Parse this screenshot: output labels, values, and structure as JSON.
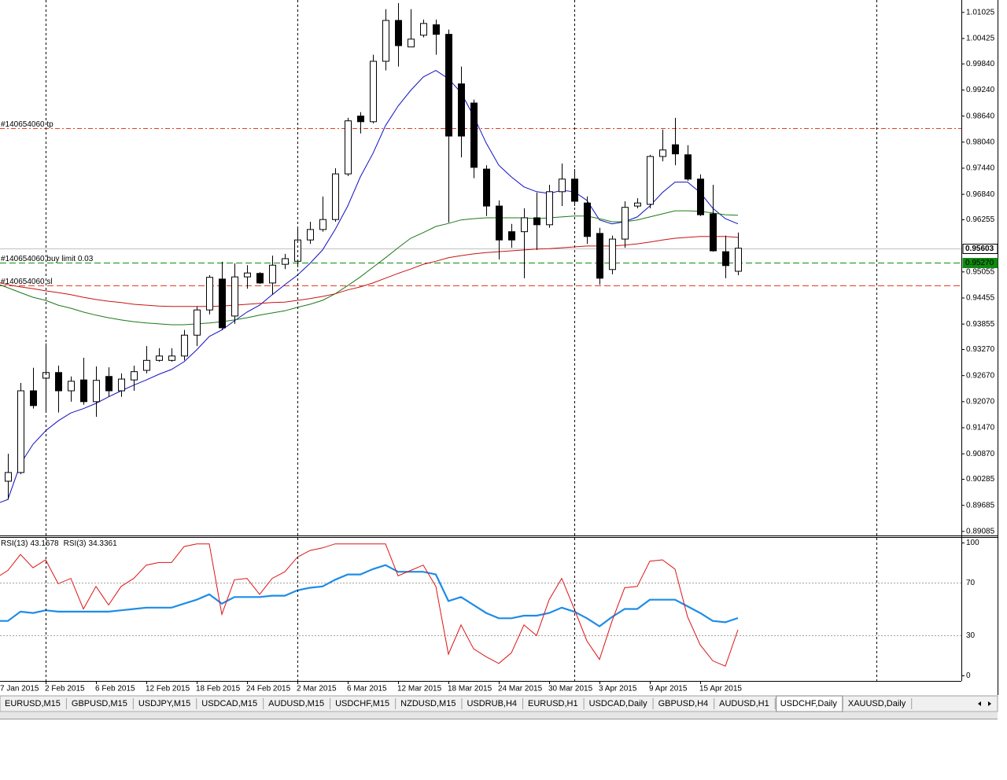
{
  "chart_data": [
    {
      "type": "candlestick",
      "categories": [
        "7 Jan 2015",
        null,
        null,
        null,
        "2 Feb 2015",
        null,
        null,
        null,
        "6 Feb 2015",
        null,
        null,
        null,
        "12 Feb 2015",
        null,
        null,
        null,
        "18 Feb 2015",
        null,
        null,
        null,
        "24 Feb 2015",
        null,
        null,
        null,
        "2 Mar 2015",
        null,
        null,
        null,
        "6 Mar 2015",
        null,
        null,
        null,
        "12 Mar 2015",
        null,
        null,
        null,
        "18 Mar 2015",
        null,
        null,
        null,
        "24 Mar 2015",
        null,
        null,
        null,
        "30 Mar 2015",
        null,
        null,
        null,
        "3 Apr 2015",
        null,
        null,
        null,
        "9 Apr 2015",
        null,
        null,
        null,
        "15 Apr 2015",
        null,
        null,
        null
      ],
      "open": [
        null,
        0.9024,
        0.9044,
        0.9232,
        0.9261,
        0.9274,
        0.9232,
        0.9257,
        0.9207,
        0.9265,
        0.9232,
        0.9257,
        0.9279,
        0.9302,
        0.9302,
        0.9312,
        0.936,
        0.9418,
        0.9489,
        0.9404,
        0.9494,
        0.9502,
        0.948,
        0.9523,
        0.953,
        0.9579,
        0.9603,
        0.9626,
        0.9731,
        0.9864,
        0.9851,
        0.999,
        1.0084,
        1.0023,
        1.005,
        1.0074,
        1.0052,
        0.9938,
        0.9894,
        0.9742,
        0.9657,
        0.9598,
        0.9598,
        0.963,
        0.9614,
        0.969,
        0.9719,
        0.9664,
        0.9594,
        0.9511,
        0.9581,
        0.9657,
        0.9661,
        0.9771,
        0.9798,
        0.9775,
        0.9719,
        0.9639,
        0.9552,
        0.9507
      ],
      "high": [
        null,
        0.9087,
        0.925,
        0.9285,
        0.9341,
        0.929,
        0.9265,
        0.9308,
        0.9288,
        0.9286,
        0.9272,
        0.929,
        0.9335,
        0.933,
        0.933,
        0.9372,
        0.9426,
        0.9498,
        0.9529,
        0.9525,
        0.9521,
        0.9505,
        0.9543,
        0.9547,
        0.9607,
        0.9621,
        0.9679,
        0.9744,
        0.986,
        0.9873,
        1.0005,
        1.011,
        1.0124,
        1.011,
        1.0086,
        1.0086,
        1.0063,
        0.9978,
        0.9902,
        0.9751,
        0.967,
        0.9616,
        0.9652,
        0.9688,
        0.9706,
        0.9755,
        0.9742,
        0.9679,
        0.9607,
        0.9589,
        0.9668,
        0.9675,
        0.9775,
        0.9833,
        0.986,
        0.9797,
        0.973,
        0.9706,
        0.9589,
        0.9596
      ],
      "low": [
        null,
        0.8982,
        0.904,
        0.9191,
        0.9185,
        0.9182,
        0.9207,
        0.92,
        0.9172,
        0.9218,
        0.9218,
        0.9232,
        0.9272,
        0.9299,
        0.9299,
        0.9302,
        0.9335,
        0.9408,
        0.9372,
        0.9386,
        0.9467,
        0.9478,
        0.9453,
        0.9512,
        0.9516,
        0.957,
        0.9598,
        0.9621,
        0.9726,
        0.9824,
        0.9847,
        0.9969,
        0.9978,
        1.0023,
        1.0045,
        1.0005,
        0.9619,
        0.9769,
        0.9721,
        0.9634,
        0.9534,
        0.9561,
        0.9491,
        0.9556,
        0.9607,
        0.9657,
        0.9657,
        0.957,
        0.9476,
        0.95,
        0.9561,
        0.9652,
        0.9652,
        0.976,
        0.9751,
        0.9715,
        0.9634,
        0.9552,
        0.9491,
        0.9498
      ],
      "close": [
        null,
        0.9044,
        0.9232,
        0.9198,
        0.9274,
        0.9232,
        0.9254,
        0.9207,
        0.9256,
        0.9232,
        0.9259,
        0.9276,
        0.9302,
        0.9312,
        0.9312,
        0.936,
        0.9418,
        0.9493,
        0.9377,
        0.9494,
        0.9503,
        0.948,
        0.9521,
        0.9536,
        0.9579,
        0.9603,
        0.9626,
        0.9731,
        0.9853,
        0.9851,
        0.999,
        1.0084,
        1.0026,
        1.0041,
        1.0077,
        1.0052,
        0.9818,
        0.9818,
        0.9746,
        0.9657,
        0.9579,
        0.9579,
        0.963,
        0.9614,
        0.969,
        0.9719,
        0.9668,
        0.9587,
        0.9491,
        0.9581,
        0.9654,
        0.9664,
        0.9771,
        0.9786,
        0.9777,
        0.9719,
        0.9637,
        0.9554,
        0.952,
        0.956
      ],
      "up_color": "#ffffff",
      "down_color": "#000000",
      "series": [
        {
          "color": "#1010c0",
          "values": [
            0.8971,
            0.8982,
            0.9064,
            0.9109,
            0.914,
            0.9163,
            0.9181,
            0.9191,
            0.9203,
            0.9218,
            0.9232,
            0.9245,
            0.9257,
            0.927,
            0.9281,
            0.9299,
            0.9326,
            0.9357,
            0.9372,
            0.9393,
            0.9413,
            0.9429,
            0.9453,
            0.9476,
            0.9498,
            0.9525,
            0.9556,
            0.9603,
            0.9657,
            0.9724,
            0.9778,
            0.9842,
            0.9887,
            0.9923,
            0.9954,
            0.9969,
            0.995,
            0.9918,
            0.9864,
            0.9802,
            0.9751,
            0.9724,
            0.9701,
            0.969,
            0.9686,
            0.9693,
            0.969,
            0.967,
            0.9625,
            0.9616,
            0.9621,
            0.9632,
            0.9657,
            0.9688,
            0.9712,
            0.9712,
            0.9688,
            0.9652,
            0.9628,
            0.9616
          ]
        },
        {
          "color": "#1a7a1a",
          "values": [
            0.948,
            0.9469,
            0.9458,
            0.9447,
            0.944,
            0.9429,
            0.9422,
            0.9413,
            0.9406,
            0.94,
            0.9395,
            0.9391,
            0.9388,
            0.9386,
            0.9384,
            0.9384,
            0.9386,
            0.9388,
            0.9391,
            0.9395,
            0.94,
            0.9406,
            0.9411,
            0.9416,
            0.9424,
            0.9431,
            0.944,
            0.9455,
            0.9474,
            0.9494,
            0.9516,
            0.9538,
            0.9561,
            0.9583,
            0.9596,
            0.961,
            0.9617,
            0.9625,
            0.9628,
            0.963,
            0.963,
            0.963,
            0.963,
            0.9628,
            0.963,
            0.9632,
            0.9634,
            0.9634,
            0.9628,
            0.9621,
            0.9621,
            0.9625,
            0.9632,
            0.9639,
            0.9646,
            0.9646,
            0.9645,
            0.9641,
            0.9637,
            0.9636
          ]
        },
        {
          "color": "#c81414",
          "values": [
            0.9483,
            0.9476,
            0.9471,
            0.9467,
            0.9462,
            0.9458,
            0.9453,
            0.9447,
            0.9442,
            0.9438,
            0.9435,
            0.9431,
            0.9429,
            0.9427,
            0.9426,
            0.9426,
            0.9426,
            0.9426,
            0.9427,
            0.9429,
            0.9431,
            0.9433,
            0.9435,
            0.9436,
            0.944,
            0.9444,
            0.9449,
            0.9455,
            0.9464,
            0.9471,
            0.948,
            0.9491,
            0.9502,
            0.9512,
            0.9523,
            0.953,
            0.9538,
            0.9543,
            0.9547,
            0.955,
            0.9552,
            0.9554,
            0.9556,
            0.9558,
            0.9559,
            0.9561,
            0.9563,
            0.9565,
            0.9565,
            0.9565,
            0.9567,
            0.957,
            0.9574,
            0.9579,
            0.9583,
            0.9585,
            0.9587,
            0.9587,
            0.9587,
            0.9585
          ]
        }
      ],
      "ylim": [
        0.8901,
        1.0131
      ],
      "yticks": [
        1.01025,
        1.00425,
        {
          "value": 0.9984,
          "label": "0.99840"
        },
        {
          "value": 0.9924,
          "label": "0.99240"
        },
        {
          "value": 0.9864,
          "label": "0.98640"
        },
        {
          "value": 0.9804,
          "label": "0.98040"
        },
        {
          "value": 0.9744,
          "label": "0.97440"
        },
        {
          "value": 0.9684,
          "label": "0.96840"
        },
        0.96255,
        0.95055,
        0.94455,
        0.93855,
        {
          "value": 0.9327,
          "label": "0.93270"
        },
        {
          "value": 0.9267,
          "label": "0.92670"
        },
        {
          "value": 0.9207,
          "label": "0.92070"
        },
        {
          "value": 0.9147,
          "label": "0.91470"
        },
        {
          "value": 0.9087,
          "label": "0.90870"
        },
        0.90285,
        0.89685,
        0.89085
      ],
      "levels": [
        {
          "label": "#140654060 tp",
          "value": 0.9836,
          "color": "#e04020",
          "dash": "dashdot"
        },
        {
          "label": "#140654060 buy limit 0.03",
          "value": 0.9527,
          "color": "#108a10",
          "dash": "dashed"
        },
        {
          "label": "#140654060 sl",
          "value": 0.9474,
          "color": "#e04020",
          "dash": "dashed"
        }
      ],
      "price_markers": [
        {
          "value": 0.95603,
          "color": "#c0c0c0"
        },
        {
          "value": 0.9527,
          "label": "0.95270",
          "color": "#108a10"
        }
      ]
    },
    {
      "type": "line",
      "series": [
        {
          "name": "RSI(13)",
          "color": "#1e8ce6",
          "values": [
            41,
            41,
            48,
            47,
            49,
            48,
            48,
            48,
            48,
            48,
            49,
            50,
            51,
            51,
            51,
            54,
            57,
            61,
            54,
            59,
            59,
            59,
            60,
            60,
            64,
            66,
            67,
            72,
            76,
            76,
            80,
            83,
            78,
            78,
            78,
            76,
            56,
            59,
            53,
            47,
            43,
            43,
            45,
            45,
            47,
            51,
            48,
            43,
            37,
            44,
            50,
            50,
            57,
            57,
            57,
            52,
            47,
            41,
            40,
            43.1678
          ]
        },
        {
          "name": "RSI(3)",
          "color": "#dc1414",
          "values": [
            73,
            79,
            91,
            81,
            87,
            69,
            73,
            50,
            67,
            53,
            67,
            73,
            83,
            85,
            85,
            97,
            99,
            99,
            46,
            72,
            73,
            61,
            73,
            78,
            89,
            94,
            96,
            99,
            99,
            99,
            99,
            99,
            75,
            79,
            83,
            67,
            16,
            38,
            20,
            14,
            9,
            17,
            38,
            30,
            57,
            73,
            50,
            26,
            12,
            41,
            66,
            67,
            86,
            87,
            80,
            44,
            23,
            11,
            7,
            34.3361
          ]
        }
      ],
      "ylim": [
        0,
        100
      ],
      "yticks": [
        100,
        70,
        30,
        0
      ]
    }
  ],
  "tabs": {
    "items": [
      "EURUSD,M15",
      "GBPUSD,M15",
      "USDJPY,M15",
      "USDCAD,M15",
      "AUDUSD,M15",
      "USDCHF,M15",
      "NZDUSD,M15",
      "USDRUB,H4",
      "EURUSD,H1",
      "USDCAD,Daily",
      "GBPUSD,H4",
      "AUDUSD,H1",
      "USDCHF,Daily",
      "XAUUSD,Daily"
    ],
    "active": 12
  }
}
